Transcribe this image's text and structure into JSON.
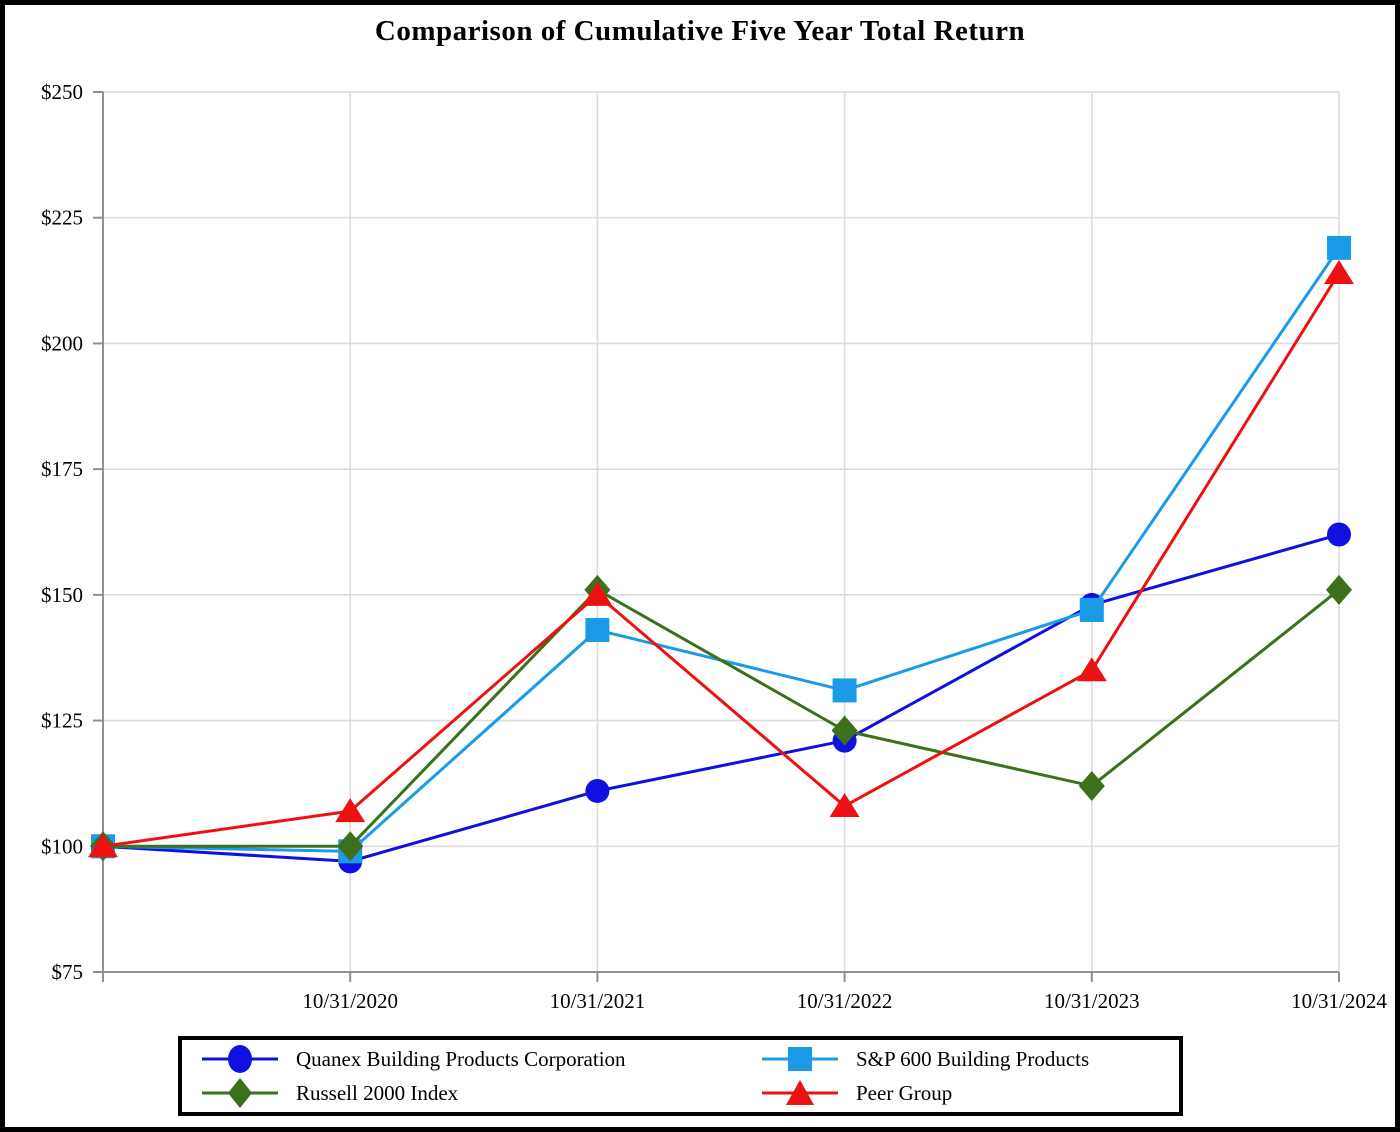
{
  "page": {
    "title": "Comparison of Cumulative Five Year Total Return"
  },
  "chart_data": {
    "type": "line",
    "title": "Comparison of Cumulative Five Year Total Return",
    "x_tick_labels": [
      "10/31/2020",
      "10/31/2021",
      "10/31/2022",
      "10/31/2023",
      "10/31/2024"
    ],
    "x_start_label": "",
    "ylim": [
      75,
      250
    ],
    "y_ticks": [
      {
        "value": 75,
        "label": "$75"
      },
      {
        "value": 100,
        "label": "$100"
      },
      {
        "value": 125,
        "label": "$125"
      },
      {
        "value": 150,
        "label": "$150"
      },
      {
        "value": 175,
        "label": "$175"
      },
      {
        "value": 200,
        "label": "$200"
      },
      {
        "value": 225,
        "label": "$225"
      },
      {
        "value": 250,
        "label": "$250"
      }
    ],
    "grid": true,
    "legend_position": "bottom",
    "colors": {
      "grid": "#dcdcdc",
      "axis": "#909090",
      "text": "#000000"
    },
    "series": [
      {
        "name": "Quanex Building Products Corporation",
        "marker": "circle",
        "color": "#1010e0",
        "values": [
          100,
          97,
          111,
          121,
          148,
          162
        ]
      },
      {
        "name": "S&P 600 Building Products",
        "marker": "square",
        "color": "#1b9ae8",
        "values": [
          100,
          99,
          143,
          131,
          147,
          219
        ]
      },
      {
        "name": "Russell 2000 Index",
        "marker": "diamond",
        "color": "#3c701c",
        "values": [
          100,
          100,
          151,
          123,
          112,
          151
        ]
      },
      {
        "name": "Peer Group",
        "marker": "triangle",
        "color": "#ee1111",
        "values": [
          100,
          107,
          150,
          108,
          135,
          214
        ]
      }
    ]
  }
}
